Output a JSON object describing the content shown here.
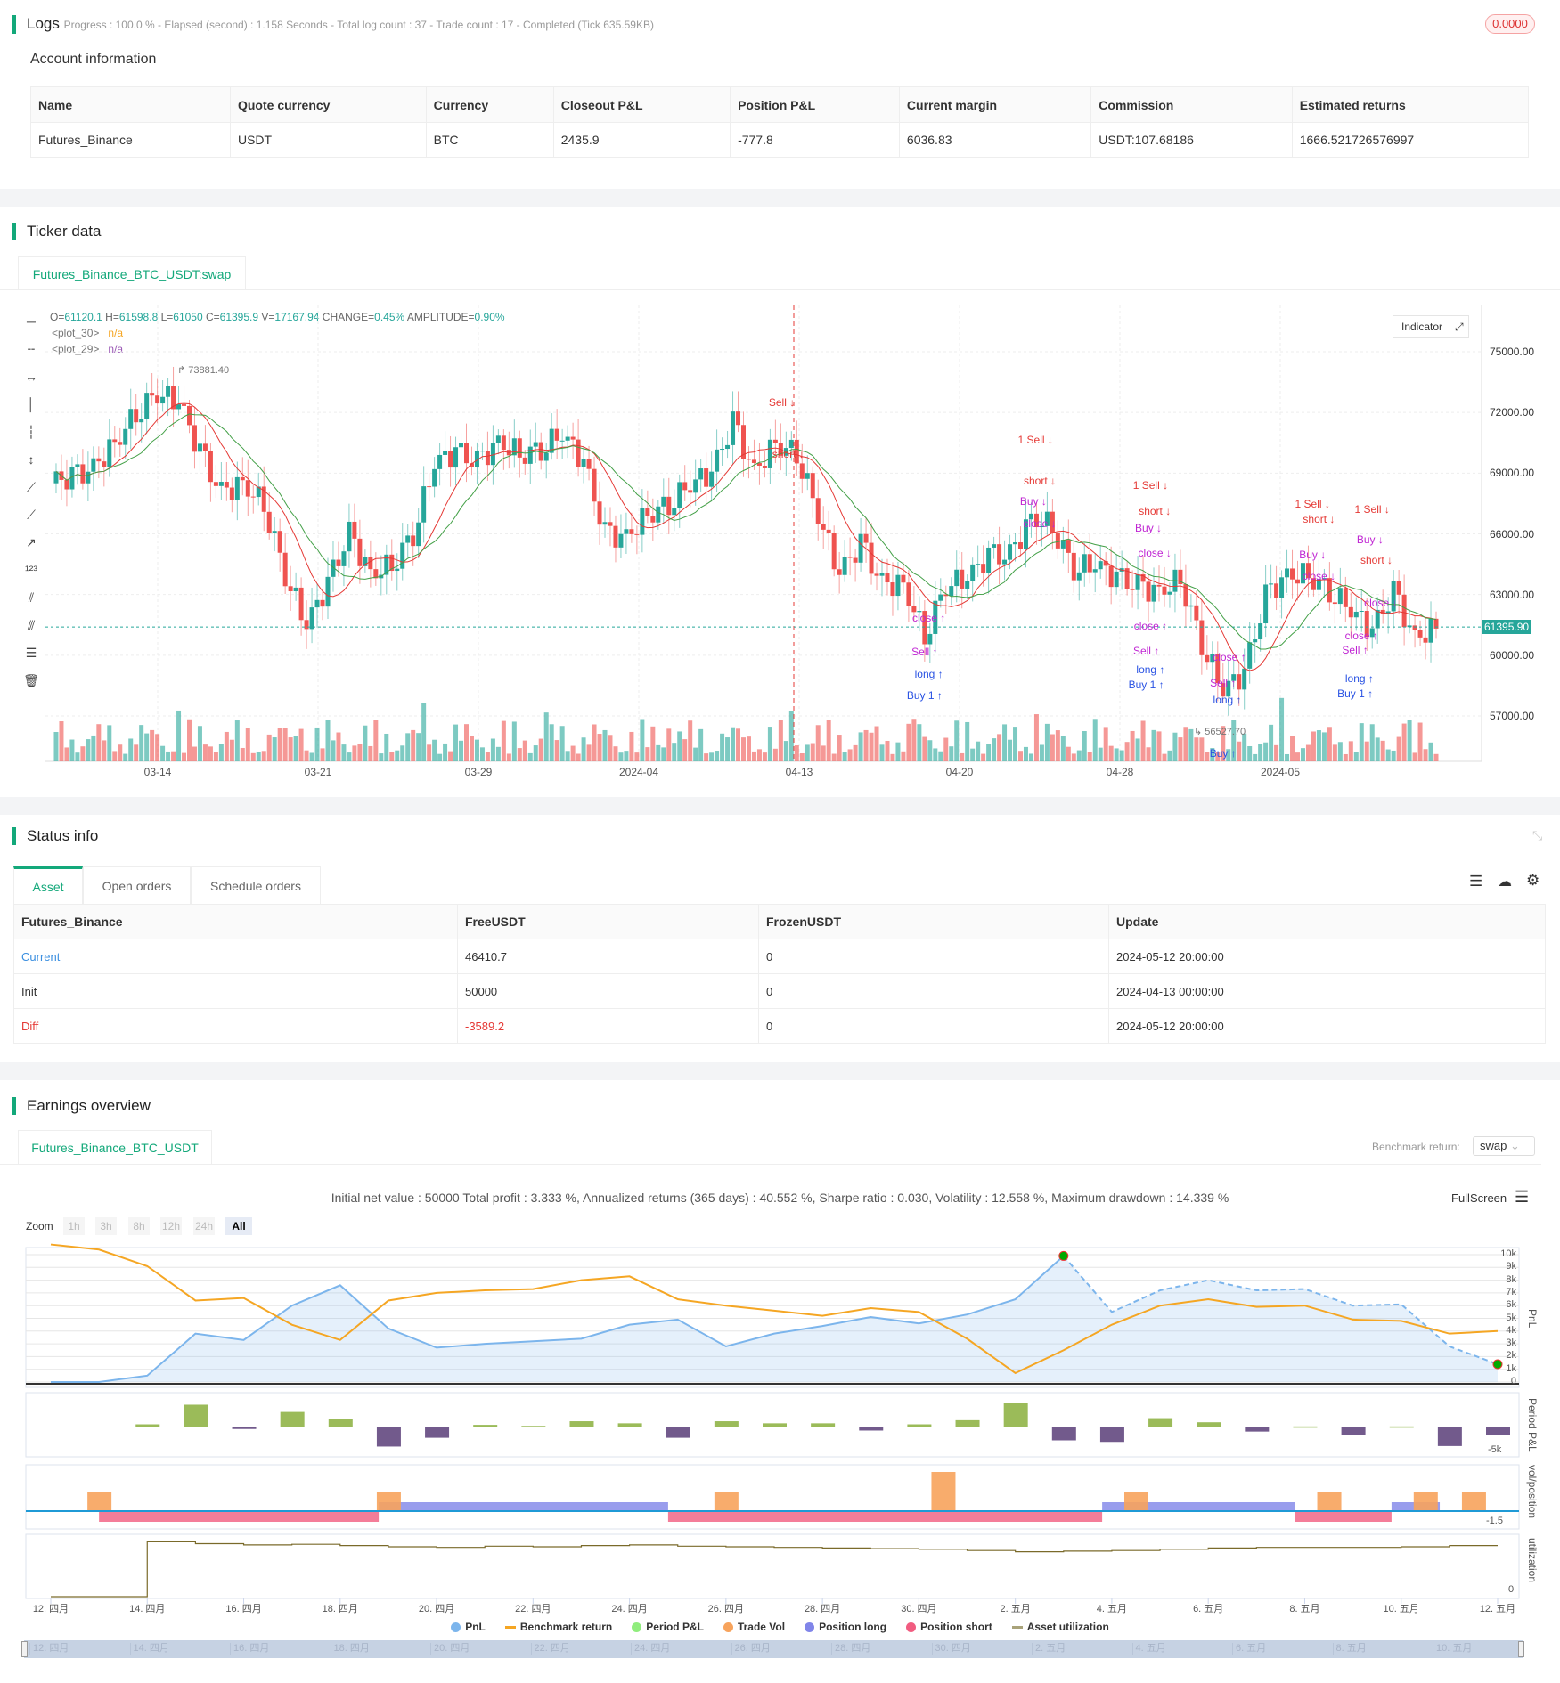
{
  "logs": {
    "title": "Logs",
    "progress": "Progress : 100.0 % - Elapsed (second) : 1.158  Seconds - Total log count : 37 - Trade count : 17 - Completed (Tick 635.59KB)",
    "badge": "0.0000"
  },
  "account": {
    "title": "Account information",
    "headers": [
      "Name",
      "Quote currency",
      "Currency",
      "Closeout P&L",
      "Position P&L",
      "Current margin",
      "Commission",
      "Estimated returns"
    ],
    "row": [
      "Futures_Binance",
      "USDT",
      "BTC",
      "2435.9",
      "-777.8",
      "6036.83",
      "USDT:107.68186",
      "1666.521726576997"
    ]
  },
  "ticker": {
    "title": "Ticker data",
    "tab": "Futures_Binance_BTC_USDT:swap",
    "ohlc": {
      "o_label": "O=",
      "o": "61120.1",
      "h_label": " H=",
      "h": "61598.8",
      "l_label": " L=",
      "l": "61050",
      "c_label": " C=",
      "c": "61395.9",
      "v_label": " V=",
      "v": "17167.94",
      "change_label": " CHANGE=",
      "change": "0.45%",
      "amp_label": " AMPLITUDE=",
      "amp": "0.90%"
    },
    "plots": [
      {
        "name": "<plot_30>",
        "value": "n/a",
        "color": "#f5a623"
      },
      {
        "name": "<plot_29>",
        "value": "n/a",
        "color": "#9b59b6"
      }
    ],
    "indicator_button": "Indicator",
    "high_label": "73881.40",
    "low_label": "56527.70",
    "last_price": "61395.90",
    "colors": {
      "up": "#26a69a",
      "down": "#ef5350",
      "ma_fast": "#e53935",
      "ma_slow": "#43a047"
    }
  },
  "chart_data": [
    {
      "type": "candlestick",
      "title": "",
      "price_ticks": [
        "75000.00",
        "72000.00",
        "69000.00",
        "66000.00",
        "63000.00",
        "60000.00",
        "57000.00"
      ],
      "ylim": [
        57000,
        75000
      ],
      "x_ticks": [
        "03-14",
        "03-21",
        "03-29",
        "2024-04",
        "04-13",
        "04-20",
        "04-28",
        "2024-05"
      ],
      "closes": [
        68500,
        68800,
        69200,
        70500,
        72000,
        73000,
        72500,
        70000,
        68000,
        68500,
        67500,
        64000,
        61500,
        63500,
        66000,
        64000,
        64500,
        66000,
        69500,
        70000,
        69500,
        70500,
        70000,
        70200,
        71000,
        69500,
        66000,
        65800,
        67000,
        67500,
        68500,
        69000,
        71500,
        69000,
        70500,
        70000,
        67000,
        64000,
        65500,
        63500,
        63500,
        61000,
        63500,
        63800,
        64900,
        64900,
        66800,
        66400,
        64300,
        64500,
        63800,
        63400,
        63100,
        63800,
        60600,
        58300,
        59100,
        62900,
        63900,
        64000,
        63200,
        62300,
        61200,
        63100,
        60800,
        61400
      ],
      "markers": [
        {
          "i": 34.3,
          "price": 72500,
          "text": "Sell",
          "color": "#e53935",
          "dir": "down"
        },
        {
          "i": 34.6,
          "price": 69950,
          "text": "short",
          "color": "#e53935",
          "dir": "down"
        },
        {
          "i": 46.2,
          "price": 70650,
          "text": "1 Sell",
          "color": "#e53935",
          "dir": "down"
        },
        {
          "i": 46.4,
          "price": 68630,
          "text": "short",
          "color": "#e53935",
          "dir": "down"
        },
        {
          "i": 46.1,
          "price": 68260,
          "text": "Buy",
          "color": "#c026d3",
          "dir": "down"
        },
        {
          "i": 46.4,
          "price": 66510,
          "text": "close",
          "color": "#c026d3",
          "dir": "down"
        },
        {
          "i": 41.2,
          "price": 61830,
          "text": "close",
          "color": "#c026d3",
          "dir": "up"
        },
        {
          "i": 41.0,
          "price": 60190,
          "text": "Sell",
          "color": "#c026d3",
          "dir": "up"
        },
        {
          "i": 41.2,
          "price": 59710,
          "text": "long",
          "color": "#2952e3",
          "dir": "up"
        },
        {
          "i": 41.0,
          "price": 58010,
          "text": "Buy 1",
          "color": "#2952e3",
          "dir": "up"
        },
        {
          "i": 51.6,
          "price": 68420,
          "text": "1 Sell",
          "color": "#e53935",
          "dir": "down"
        },
        {
          "i": 51.8,
          "price": 67140,
          "text": "short",
          "color": "#e53935",
          "dir": "down"
        },
        {
          "i": 51.5,
          "price": 66290,
          "text": "Buy",
          "color": "#c026d3",
          "dir": "down"
        },
        {
          "i": 51.8,
          "price": 65070,
          "text": "close",
          "color": "#c026d3",
          "dir": "down"
        },
        {
          "i": 51.6,
          "price": 61460,
          "text": "close",
          "color": "#c026d3",
          "dir": "up"
        },
        {
          "i": 51.4,
          "price": 60880,
          "text": "Sell",
          "color": "#c026d3",
          "dir": "up"
        },
        {
          "i": 51.6,
          "price": 59280,
          "text": "long",
          "color": "#2952e3",
          "dir": "up"
        },
        {
          "i": 51.4,
          "price": 58540,
          "text": "Buy 1",
          "color": "#2952e3",
          "dir": "up"
        },
        {
          "i": 55.3,
          "price": 59920,
          "text": "close",
          "color": "#c026d3",
          "dir": "up"
        },
        {
          "i": 55.2,
          "price": 57800,
          "text": "long",
          "color": "#2952e3",
          "dir": "up"
        },
        {
          "i": 55.0,
          "price": 57320,
          "text": "Sell",
          "color": "#c026d3",
          "dir": "up"
        },
        {
          "i": 55.0,
          "price": 55140,
          "text": "Buy",
          "color": "#2952e3",
          "dir": "up"
        },
        {
          "i": 59.2,
          "price": 67460,
          "text": "1 Sell",
          "color": "#e53935",
          "dir": "down"
        },
        {
          "i": 59.5,
          "price": 66720,
          "text": "short",
          "color": "#e53935",
          "dir": "down"
        },
        {
          "i": 59.2,
          "price": 64970,
          "text": "Buy",
          "color": "#c026d3",
          "dir": "down"
        },
        {
          "i": 59.5,
          "price": 64590,
          "text": "close",
          "color": "#c026d3",
          "dir": "down"
        },
        {
          "i": 62.0,
          "price": 67200,
          "text": "1 Sell",
          "color": "#e53935",
          "dir": "down"
        },
        {
          "i": 62.2,
          "price": 64700,
          "text": "short",
          "color": "#e53935",
          "dir": "down"
        },
        {
          "i": 61.9,
          "price": 65070,
          "text": "Buy",
          "color": "#c026d3",
          "dir": "down"
        },
        {
          "i": 62.4,
          "price": 62580,
          "text": "close",
          "color": "#c026d3",
          "dir": "down"
        },
        {
          "i": 61.5,
          "price": 60980,
          "text": "close",
          "color": "#c026d3",
          "dir": "up"
        },
        {
          "i": 61.2,
          "price": 60240,
          "text": "Sell",
          "color": "#c026d3",
          "dir": "up"
        },
        {
          "i": 61.4,
          "price": 58860,
          "text": "long",
          "color": "#2952e3",
          "dir": "up"
        },
        {
          "i": 61.2,
          "price": 58120,
          "text": "Buy 1",
          "color": "#2952e3",
          "dir": "up"
        }
      ]
    },
    {
      "type": "line",
      "title": "",
      "x_ticks": [
        "12. 四月",
        "14. 四月",
        "16. 四月",
        "18. 四月",
        "20. 四月",
        "22. 四月",
        "24. 四月",
        "26. 四月",
        "28. 四月",
        "30. 四月",
        "2. 五月",
        "4. 五月",
        "6. 五月",
        "8. 五月",
        "10. 五月",
        "12. 五月"
      ],
      "y_ticks": [
        "10k",
        "9k",
        "8k",
        "7k",
        "6k",
        "5k",
        "4k",
        "3k",
        "2k",
        "1k",
        "0"
      ],
      "ylim": [
        0,
        10000
      ],
      "ylabel": "PnL",
      "series": [
        {
          "name": "PnL",
          "color": "#7cb5ec",
          "values": [
            0,
            0,
            500,
            3800,
            3300,
            6000,
            7600,
            4200,
            2700,
            3000,
            3200,
            3400,
            4500,
            4900,
            2800,
            3800,
            4400,
            5100,
            4600,
            5300,
            6500,
            9900,
            5500,
            7200,
            8000,
            7200,
            7300,
            6000,
            6100,
            2800,
            1400
          ]
        },
        {
          "name": "Benchmark return",
          "color": "#f5a623",
          "values": [
            10800,
            10400,
            9100,
            6400,
            6600,
            4500,
            3300,
            6400,
            7000,
            7200,
            7300,
            8000,
            8300,
            6500,
            6000,
            5600,
            5200,
            5800,
            5500,
            3400,
            700,
            2500,
            4500,
            6000,
            6500,
            5900,
            6000,
            4900,
            4800,
            3800,
            4000
          ]
        }
      ]
    },
    {
      "type": "bar",
      "ylabel": "Period P&L",
      "y_ticks": [
        "-5k"
      ],
      "name": "Period P&L",
      "colors": {
        "pos": "#9bbb59",
        "neg": "#725a8c"
      },
      "start_day": 2,
      "values": [
        600,
        4400,
        -300,
        3000,
        1600,
        -3700,
        -2000,
        500,
        300,
        1200,
        800,
        -2000,
        1200,
        800,
        800,
        -600,
        600,
        1400,
        4800,
        -2500,
        -2800,
        1800,
        1000,
        -800,
        200,
        -1500,
        200,
        -3600,
        -1500
      ]
    },
    {
      "type": "bar",
      "ylabel": "vol/position",
      "y_ticks": [
        "-1.5"
      ],
      "trade_vol": [
        {
          "day": 1,
          "vol": 1
        },
        {
          "day": 7,
          "vol": 1
        },
        {
          "day": 14,
          "vol": 1
        },
        {
          "day": 18.5,
          "vol": 2
        },
        {
          "day": 22.5,
          "vol": 1
        },
        {
          "day": 26.5,
          "vol": 1
        },
        {
          "day": 28.5,
          "vol": 1
        },
        {
          "day": 29.5,
          "vol": 1
        }
      ],
      "positions": [
        {
          "from": 1,
          "to": 6.8,
          "side": "short"
        },
        {
          "from": 6.8,
          "to": 12.8,
          "side": "long"
        },
        {
          "from": 12.8,
          "to": 21.8,
          "side": "short"
        },
        {
          "from": 21.8,
          "to": 25.8,
          "side": "long"
        },
        {
          "from": 25.8,
          "to": 27.8,
          "side": "short"
        },
        {
          "from": 27.8,
          "to": 28.8,
          "side": "long"
        }
      ]
    },
    {
      "type": "line",
      "ylabel": "utilization",
      "y_ticks": [
        "0"
      ],
      "name": "Asset utilization",
      "values": [
        0,
        0,
        0.88,
        0.85,
        0.83,
        0.84,
        0.82,
        0.8,
        0.79,
        0.81,
        0.8,
        0.82,
        0.83,
        0.81,
        0.8,
        0.79,
        0.78,
        0.77,
        0.76,
        0.74,
        0.72,
        0.73,
        0.74,
        0.76,
        0.78,
        0.79,
        0.79,
        0.79,
        0.8,
        0.82,
        0.82
      ]
    }
  ],
  "status": {
    "title": "Status info",
    "tabs": [
      "Asset",
      "Open orders",
      "Schedule orders"
    ],
    "headers": [
      "Futures_Binance",
      "FreeUSDT",
      "FrozenUSDT",
      "Update"
    ],
    "rows": [
      [
        "Current",
        "46410.7",
        "0",
        "2024-05-12 20:00:00"
      ],
      [
        "Init",
        "50000",
        "0",
        "2024-04-13 00:00:00"
      ],
      [
        "Diff",
        "-3589.2",
        "0",
        "2024-05-12 20:00:00"
      ]
    ]
  },
  "earnings": {
    "title": "Earnings overview",
    "tab": "Futures_Binance_BTC_USDT",
    "benchmark_label": "Benchmark return:",
    "benchmark_value": "swap",
    "summary": "Initial net value : 50000 Total profit : 3.333 %, Annualized returns (365 days) : 40.552 %, Sharpe ratio : 0.030, Volatility : 12.558 %, Maximum drawdown : 14.339 %",
    "fullscreen": "FullScreen",
    "zoom_label": "Zoom",
    "zoom_buttons": [
      "1h",
      "3h",
      "8h",
      "12h",
      "24h",
      "All"
    ],
    "legend": [
      {
        "label": "PnL",
        "color": "#7cb5ec"
      },
      {
        "label": "Benchmark return",
        "color": "#f5a623"
      },
      {
        "label": "Period P&L",
        "color": "#90ed7d"
      },
      {
        "label": "Trade Vol",
        "color": "#f7a35c"
      },
      {
        "label": "Position long",
        "color": "#8085e9"
      },
      {
        "label": "Position short",
        "color": "#f15c80"
      },
      {
        "label": "Asset utilization",
        "color": "#a9a37a"
      }
    ],
    "navigator_ticks": [
      "12. 四月",
      "14. 四月",
      "16. 四月",
      "18. 四月",
      "20. 四月",
      "22. 四月",
      "24. 四月",
      "26. 四月",
      "28. 四月",
      "30. 四月",
      "2. 五月",
      "4. 五月",
      "6. 五月",
      "8. 五月",
      "10. 五月"
    ]
  }
}
